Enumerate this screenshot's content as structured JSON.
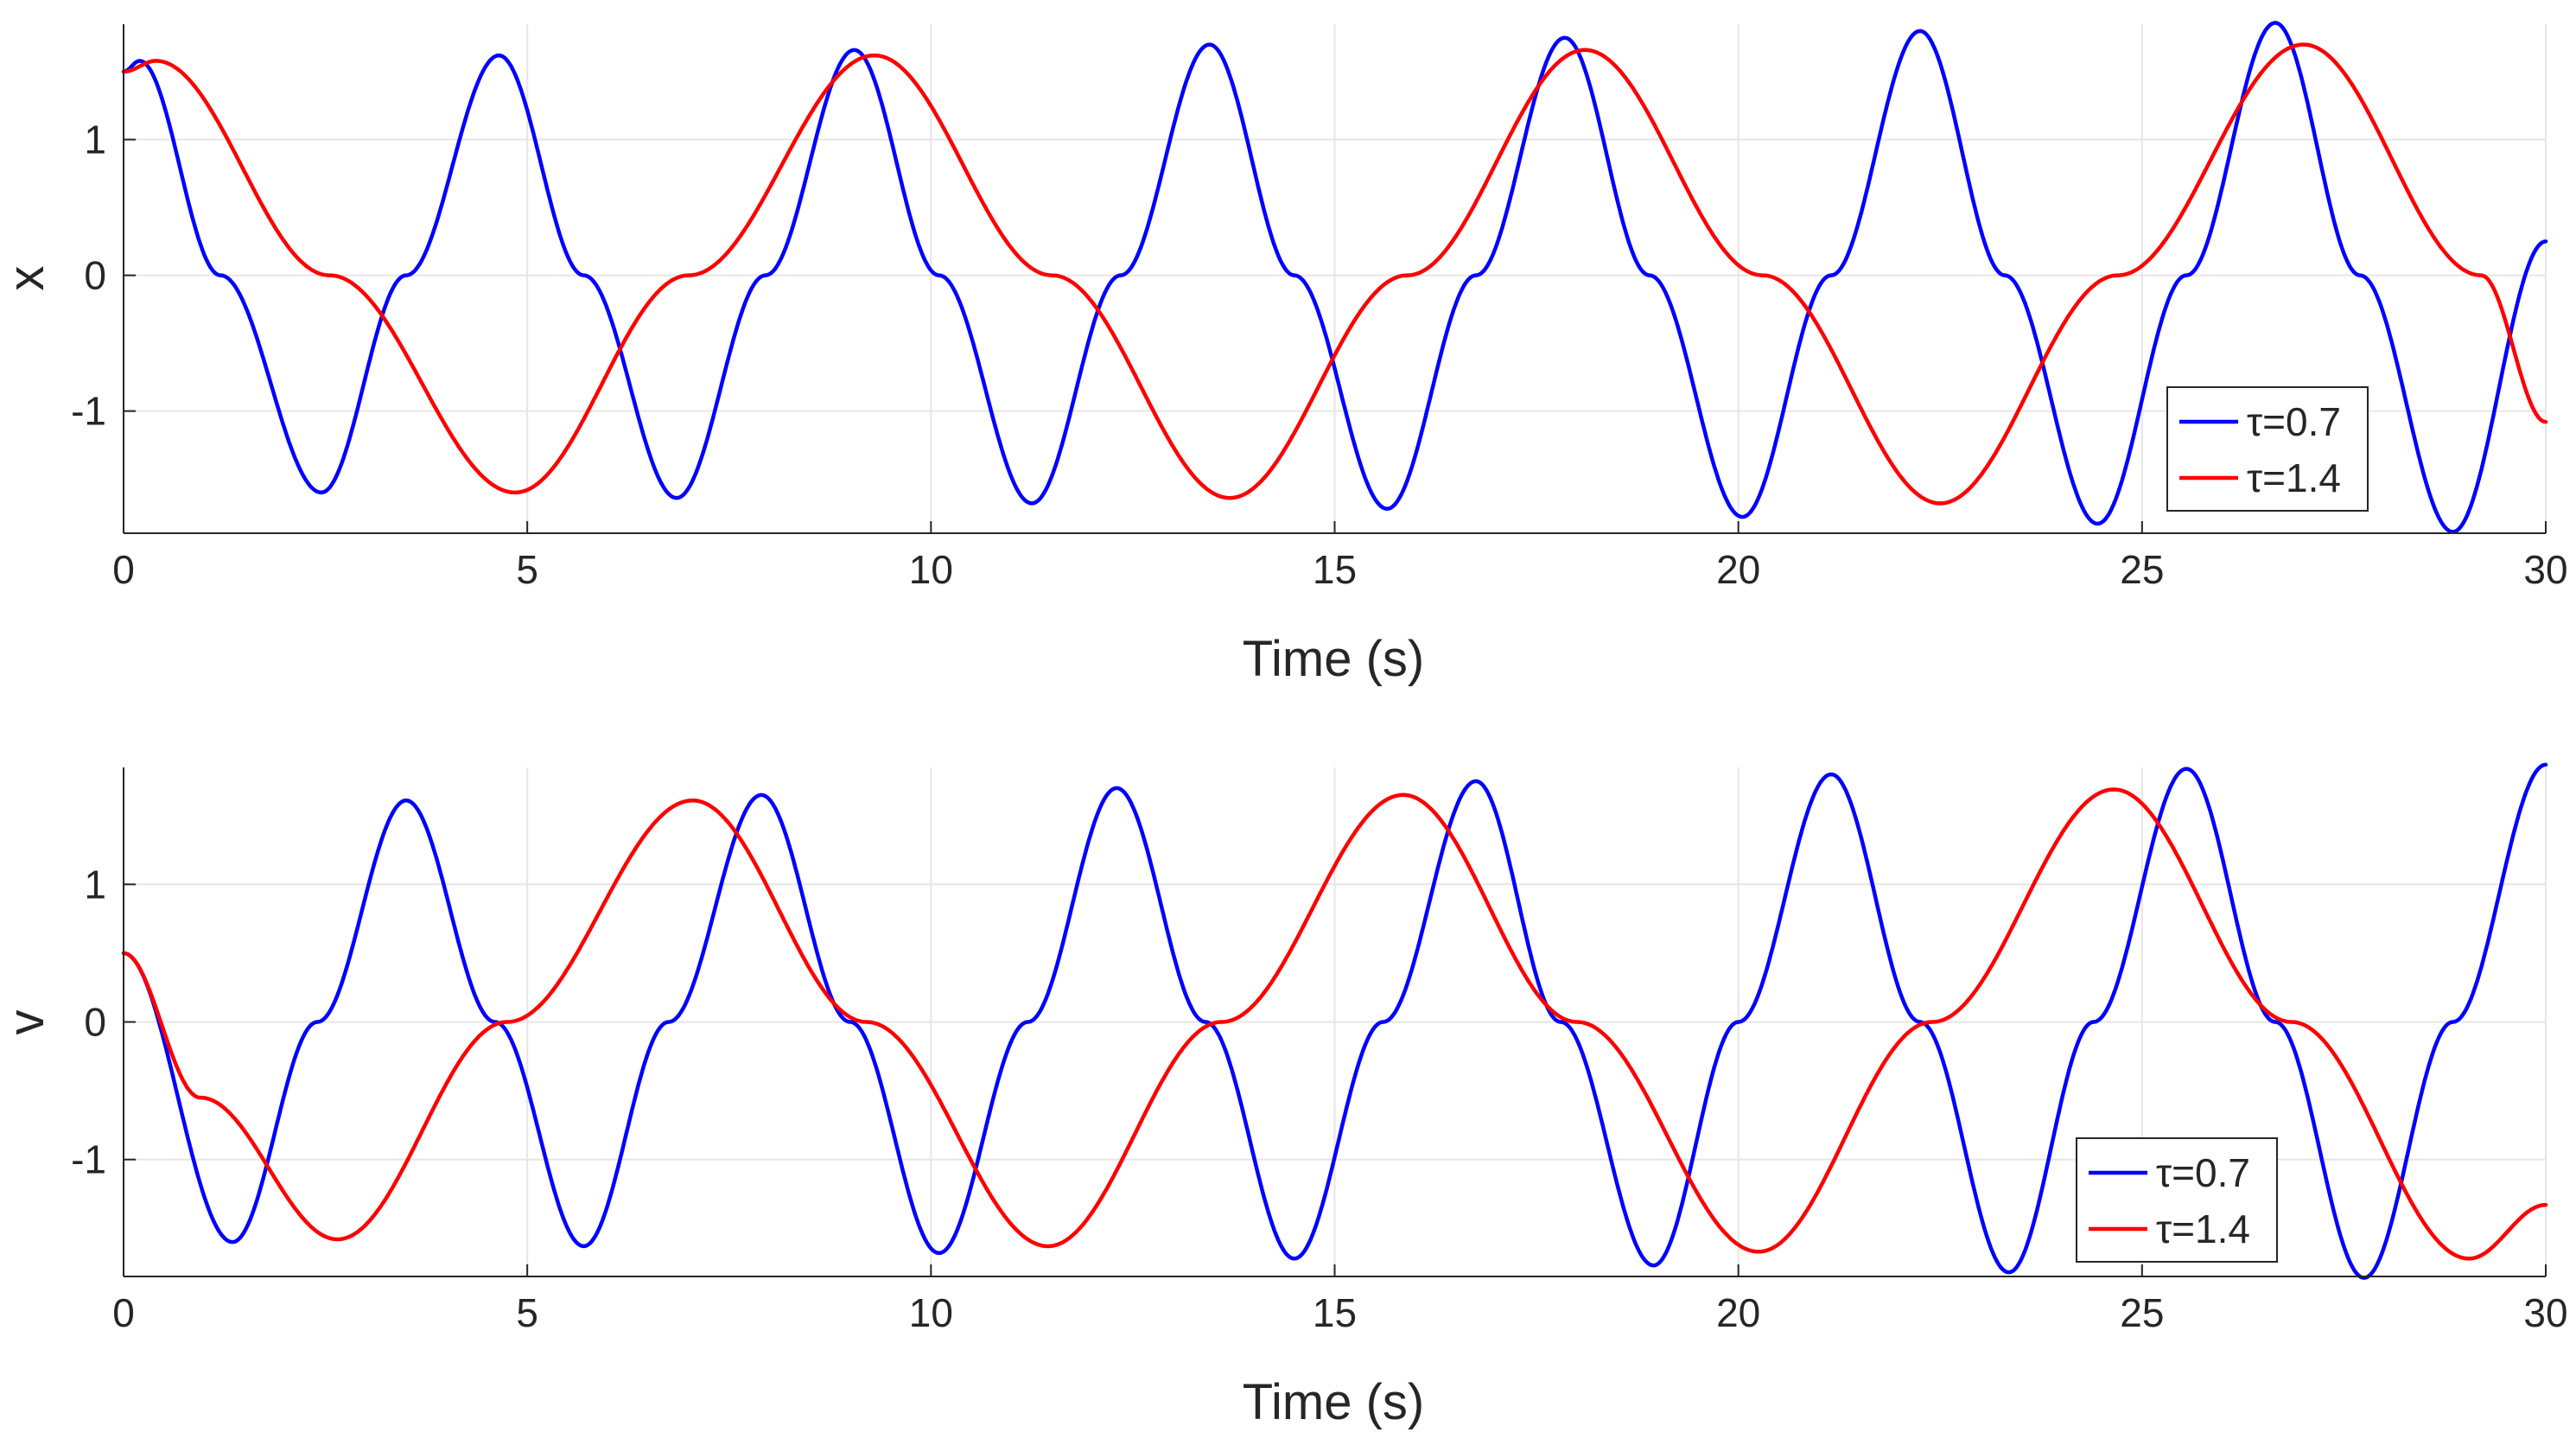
{
  "chart_data": [
    {
      "type": "line",
      "title": "",
      "xlabel": "Time (s)",
      "ylabel": "x",
      "xlim": [
        0,
        30
      ],
      "ylim": [
        -1.9,
        1.85
      ],
      "xticks": [
        0,
        5,
        10,
        15,
        20,
        25,
        30
      ],
      "yticks": [
        -1,
        0,
        1
      ],
      "xtick_labels": [
        "0",
        "5",
        "10",
        "15",
        "20",
        "25",
        "30"
      ],
      "ytick_labels": [
        "-1",
        "0",
        "1"
      ],
      "grid": true,
      "legend_position": "bottom-right",
      "series": [
        {
          "name": "τ=0.7",
          "color": "#0000ff",
          "x": [
            0,
            0.2,
            1.2,
            2.45,
            3.5,
            4.65,
            5.7,
            6.85,
            7.95,
            9.05,
            10.1,
            11.25,
            12.35,
            13.45,
            14.5,
            15.65,
            16.75,
            17.85,
            18.9,
            20.05,
            21.15,
            22.25,
            23.3,
            24.45,
            25.55,
            26.65,
            27.7,
            28.85,
            30
          ],
          "y": [
            1.5,
            1.58,
            0,
            -1.6,
            0,
            1.62,
            0,
            -1.64,
            0,
            1.66,
            0,
            -1.68,
            0,
            1.7,
            0,
            -1.72,
            0,
            1.75,
            0,
            -1.78,
            0,
            1.8,
            0,
            -1.83,
            0,
            1.86,
            0,
            -1.89,
            0.25
          ]
        },
        {
          "name": "τ=1.4",
          "color": "#ff0000",
          "x": [
            0,
            0.4,
            2.55,
            4.85,
            7.0,
            9.3,
            11.5,
            13.7,
            15.9,
            18.1,
            20.3,
            22.5,
            24.7,
            27.0,
            29.2,
            30
          ],
          "y": [
            1.5,
            1.58,
            0,
            -1.6,
            0,
            1.62,
            0,
            -1.64,
            0,
            1.66,
            0,
            -1.68,
            0,
            1.7,
            0,
            -1.08
          ]
        }
      ]
    },
    {
      "type": "line",
      "title": "",
      "xlabel": "Time (s)",
      "ylabel": "v",
      "xlim": [
        0,
        30
      ],
      "ylim": [
        -1.85,
        1.85
      ],
      "xticks": [
        0,
        5,
        10,
        15,
        20,
        25,
        30
      ],
      "yticks": [
        -1,
        0,
        1
      ],
      "xtick_labels": [
        "0",
        "5",
        "10",
        "15",
        "20",
        "25",
        "30"
      ],
      "ytick_labels": [
        "-1",
        "0",
        "1"
      ],
      "grid": true,
      "legend_position": "bottom-right",
      "series": [
        {
          "name": "τ=0.7",
          "color": "#0000ff",
          "x": [
            0,
            1.35,
            2.4,
            3.5,
            4.6,
            5.7,
            6.75,
            7.9,
            9.0,
            10.1,
            11.2,
            12.3,
            13.4,
            14.5,
            15.6,
            16.75,
            17.8,
            18.95,
            20.0,
            21.15,
            22.25,
            23.35,
            24.4,
            25.55,
            26.65,
            27.75,
            28.85,
            30
          ],
          "y": [
            0.5,
            -1.6,
            0,
            1.61,
            0,
            -1.63,
            0,
            1.65,
            0,
            -1.68,
            0,
            1.7,
            0,
            -1.72,
            0,
            1.75,
            0,
            -1.77,
            0,
            1.8,
            0,
            -1.82,
            0,
            1.84,
            0,
            -1.86,
            0,
            1.87
          ]
        },
        {
          "name": "τ=1.4",
          "color": "#ff0000",
          "x": [
            0,
            0.95,
            2.65,
            4.75,
            7.05,
            9.2,
            11.45,
            13.6,
            15.85,
            18.0,
            20.25,
            22.4,
            24.65,
            26.85,
            29.05,
            30
          ],
          "y": [
            0.5,
            -0.55,
            -1.58,
            0,
            1.61,
            0,
            -1.63,
            0,
            1.65,
            0,
            -1.67,
            0,
            1.69,
            0,
            -1.72,
            -1.33
          ]
        }
      ]
    }
  ]
}
